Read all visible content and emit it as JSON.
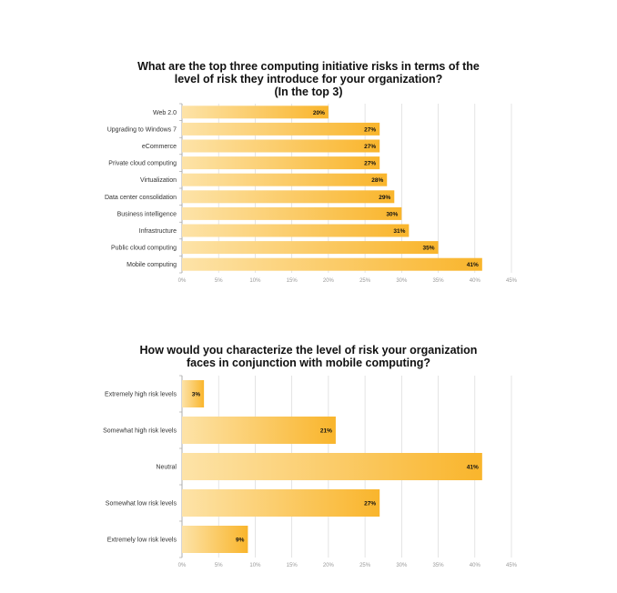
{
  "chart_data": [
    {
      "type": "bar",
      "orientation": "horizontal",
      "title_lines": [
        "What are the top three computing initiative risks in terms of the",
        "level of risk they introduce for your organization?",
        "(In the top 3)"
      ],
      "categories": [
        "Web 2.0",
        "Upgrading to Windows 7",
        "eCommerce",
        "Private cloud computing",
        "Virtualization",
        "Data center consolidation",
        "Business intelligence",
        "Infrastructure",
        "Public cloud computing",
        "Mobile computing"
      ],
      "values": [
        20,
        27,
        27,
        27,
        28,
        29,
        30,
        31,
        35,
        41
      ],
      "data_labels": [
        "20%",
        "27%",
        "27%",
        "27%",
        "28%",
        "29%",
        "30%",
        "31%",
        "35%",
        "41%"
      ],
      "xlim": [
        0,
        45
      ],
      "xticks": [
        "0%",
        "5%",
        "10%",
        "15%",
        "20%",
        "25%",
        "30%",
        "35%",
        "40%",
        "45%"
      ],
      "grid": true
    },
    {
      "type": "bar",
      "orientation": "horizontal",
      "title_lines": [
        "How would you characterize the level of risk your organization",
        "faces in conjunction with mobile computing?"
      ],
      "categories": [
        "Extremely high risk levels",
        "Somewhat high risk levels",
        "Neutral",
        "Somewhat low risk levels",
        "Extremely low risk levels"
      ],
      "values": [
        3,
        21,
        41,
        27,
        9
      ],
      "data_labels": [
        "3%",
        "21%",
        "41%",
        "27%",
        "9%"
      ],
      "xlim": [
        0,
        45
      ],
      "xticks": [
        "0%",
        "5%",
        "10%",
        "15%",
        "20%",
        "25%",
        "30%",
        "35%",
        "40%",
        "45%"
      ],
      "grid": true
    }
  ],
  "colors": {
    "bar_light": "#fde3a8",
    "bar_dark": "#f9b52c",
    "grid": "#d9d9d9",
    "axis": "#999999"
  }
}
